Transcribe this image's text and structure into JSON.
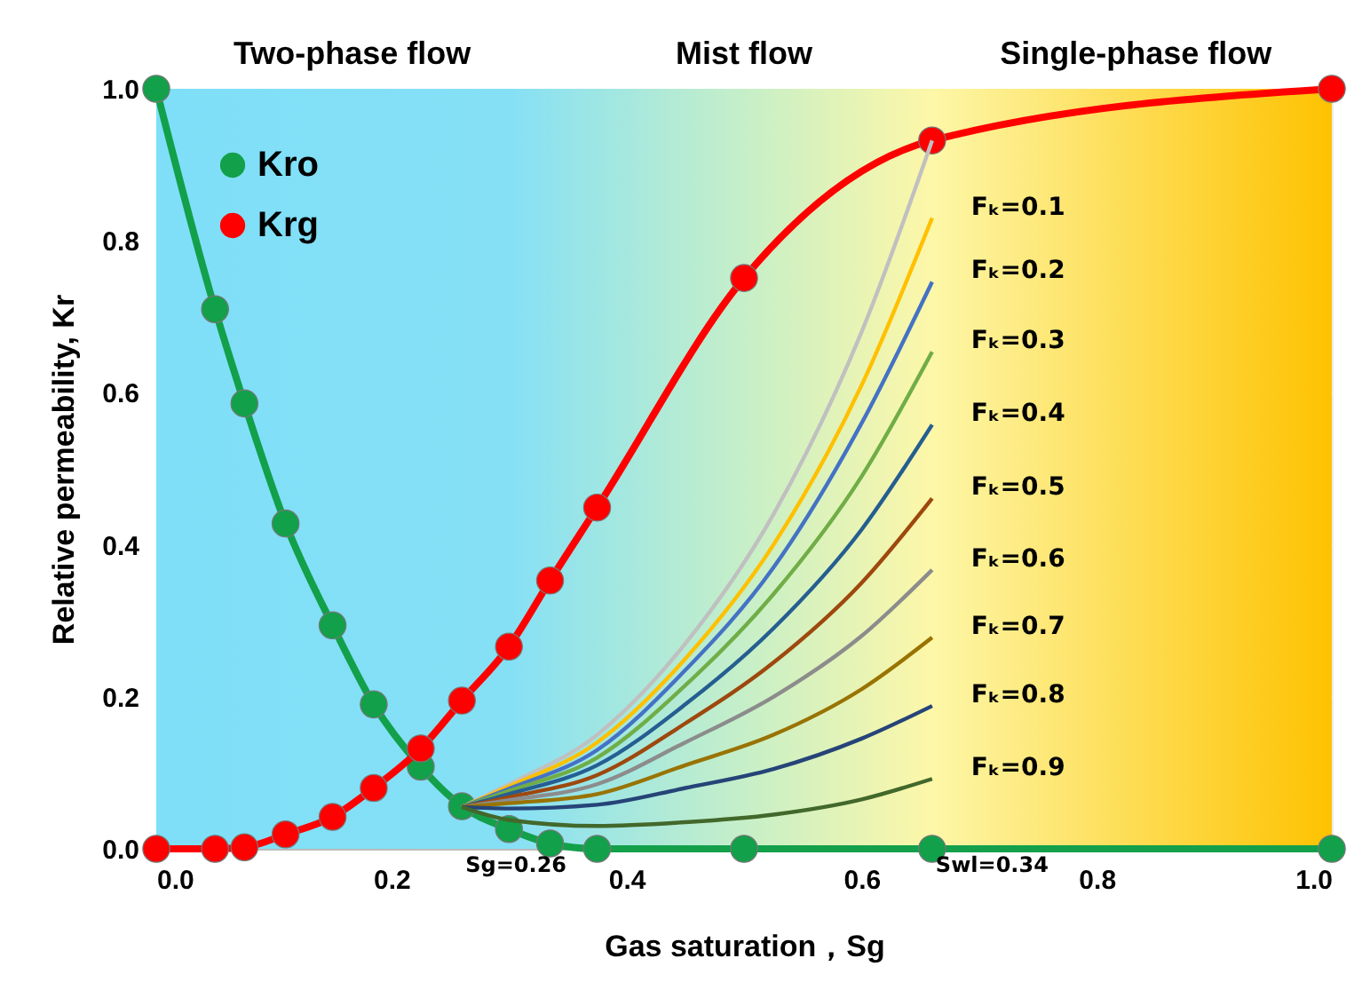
{
  "chart_data": {
    "type": "line",
    "xlabel": "Gas saturation，Sg",
    "ylabel": "Relative permeability, Kr",
    "xlim": [
      0,
      1
    ],
    "ylim": [
      0,
      1
    ],
    "xticks": [
      {
        "value": 0,
        "label": "0.0"
      },
      0.2,
      0.4,
      0.6,
      0.8,
      {
        "value": 1,
        "label": "1.0"
      }
    ],
    "yticks": [
      {
        "value": 0,
        "label": "0.0"
      },
      0.2,
      0.4,
      0.6,
      0.8,
      {
        "value": 1,
        "label": "1.0"
      }
    ],
    "grid": true,
    "legend": "top left",
    "line_style": "solid",
    "annotations": [
      "Two-phase flow",
      "Mist flow",
      "Single-phase flow",
      "Sg=0.26",
      "Swl=0.34"
    ],
    "series": [
      {
        "name": "Kro",
        "color": "#12a04a",
        "marker": "circle",
        "x": [
          0,
          0.05,
          0.075,
          0.11,
          0.15,
          0.185,
          0.225,
          0.26,
          0.3,
          0.335,
          0.375,
          0.5,
          0.66,
          1.0
        ],
        "values": [
          1.0,
          0.71,
          0.586,
          0.428,
          0.294,
          0.19,
          0.108,
          0.056,
          0.026,
          0.007,
          0,
          0,
          0,
          0
        ]
      },
      {
        "name": "Krg",
        "color": "#ff0000",
        "marker": "circle",
        "x": [
          0,
          0.05,
          0.075,
          0.11,
          0.15,
          0.185,
          0.225,
          0.26,
          0.3,
          0.335,
          0.375,
          0.5,
          0.66,
          1.0
        ],
        "values": [
          0,
          0,
          0.002,
          0.019,
          0.042,
          0.08,
          0.132,
          0.195,
          0.266,
          0.353,
          0.449,
          0.751,
          0.932,
          1.0
        ]
      },
      {
        "color": "#c0c0c0",
        "marker": "none",
        "x": [
          0.26,
          0.3,
          0.375,
          0.45,
          0.525,
          0.6,
          0.66
        ],
        "values": [
          0.055,
          0.085,
          0.15,
          0.27,
          0.44,
          0.68,
          0.932
        ]
      },
      {
        "name": "Fₖ=0.1",
        "color": "#ffc000",
        "marker": "none",
        "x": [
          0.26,
          0.3,
          0.375,
          0.45,
          0.525,
          0.6,
          0.66
        ],
        "values": [
          0.055,
          0.082,
          0.14,
          0.25,
          0.4,
          0.61,
          0.83
        ]
      },
      {
        "name": "Fₖ=0.2",
        "color": "#4472c4",
        "marker": "none",
        "x": [
          0.26,
          0.3,
          0.375,
          0.45,
          0.525,
          0.6,
          0.66
        ],
        "values": [
          0.055,
          0.079,
          0.13,
          0.235,
          0.37,
          0.56,
          0.746
        ]
      },
      {
        "name": "Fₖ=0.3",
        "color": "#70ad47",
        "marker": "none",
        "x": [
          0.26,
          0.3,
          0.375,
          0.45,
          0.525,
          0.6,
          0.66
        ],
        "values": [
          0.055,
          0.076,
          0.12,
          0.215,
          0.335,
          0.49,
          0.654
        ]
      },
      {
        "name": "Fₖ=0.4",
        "color": "#255e91",
        "marker": "none",
        "x": [
          0.26,
          0.3,
          0.375,
          0.45,
          0.525,
          0.6,
          0.66
        ],
        "values": [
          0.055,
          0.072,
          0.11,
          0.19,
          0.29,
          0.42,
          0.558
        ]
      },
      {
        "name": "Fₖ=0.5",
        "color": "#9e480e",
        "marker": "none",
        "x": [
          0.26,
          0.3,
          0.375,
          0.45,
          0.525,
          0.6,
          0.66
        ],
        "values": [
          0.055,
          0.068,
          0.097,
          0.165,
          0.245,
          0.35,
          0.461
        ]
      },
      {
        "name": "Fₖ=0.6",
        "color": "#8c8c8c",
        "marker": "none",
        "x": [
          0.26,
          0.3,
          0.375,
          0.45,
          0.525,
          0.6,
          0.66
        ],
        "values": [
          0.055,
          0.064,
          0.085,
          0.14,
          0.2,
          0.28,
          0.367
        ]
      },
      {
        "name": "Fₖ=0.7",
        "color": "#997300",
        "marker": "none",
        "x": [
          0.26,
          0.3,
          0.375,
          0.45,
          0.525,
          0.6,
          0.66
        ],
        "values": [
          0.055,
          0.06,
          0.072,
          0.11,
          0.15,
          0.21,
          0.278
        ]
      },
      {
        "name": "Fₖ=0.8",
        "color": "#264478",
        "marker": "none",
        "x": [
          0.26,
          0.3,
          0.375,
          0.45,
          0.525,
          0.6,
          0.66
        ],
        "values": [
          0.055,
          0.053,
          0.058,
          0.08,
          0.105,
          0.145,
          0.188
        ]
      },
      {
        "name": "Fₖ=0.9",
        "color": "#43682b",
        "marker": "none",
        "x": [
          0.26,
          0.3,
          0.375,
          0.45,
          0.525,
          0.6,
          0.66
        ],
        "values": [
          0.055,
          0.038,
          0.03,
          0.035,
          0.045,
          0.065,
          0.092
        ]
      }
    ]
  }
}
